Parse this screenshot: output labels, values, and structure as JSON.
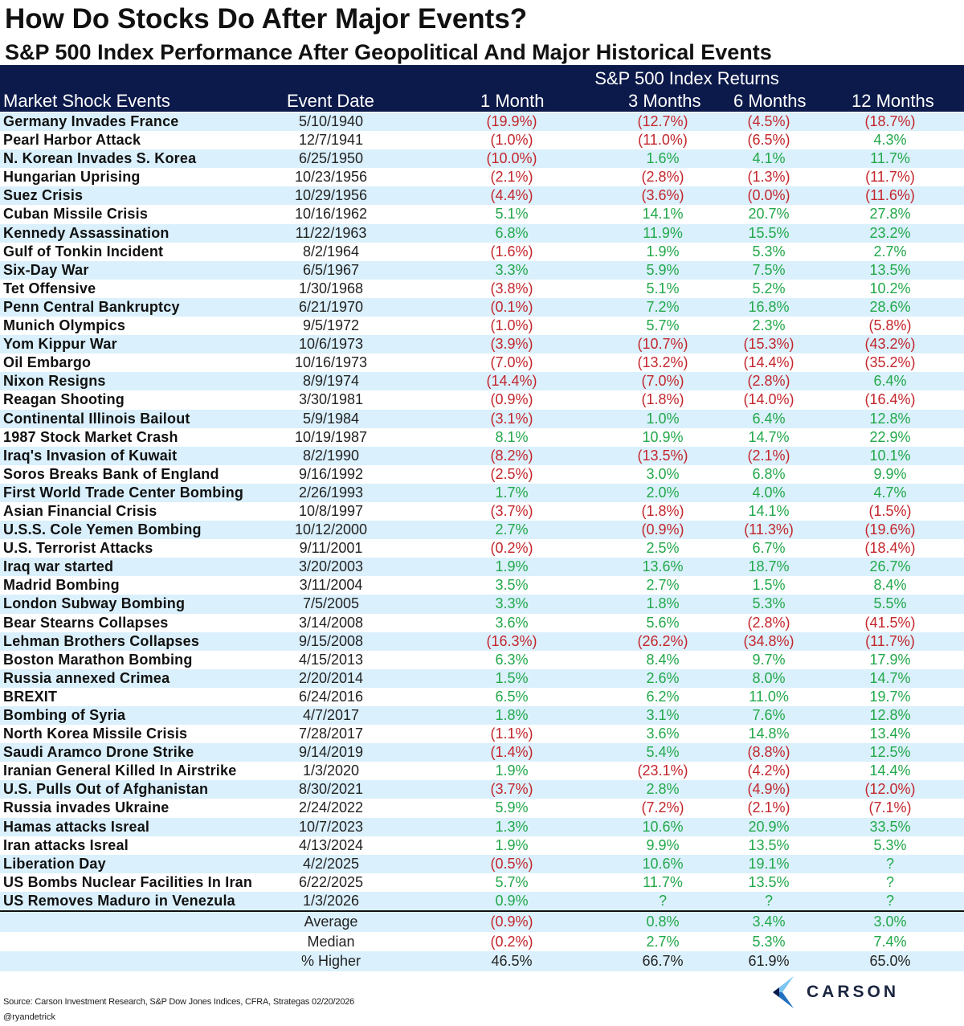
{
  "title": "How Do Stocks Do After Major Events?",
  "subtitle": "S&P 500 Index Performance After Geopolitical And Major Historical Events",
  "colors": {
    "header": "#0c1a4b",
    "alt_row": "#daf0fc",
    "negative": "#c3262c",
    "positive": "#22a84a"
  },
  "chart_data": {
    "type": "table",
    "group_header": "S&P 500 Index Returns",
    "columns": [
      "Market Shock Events",
      "Event Date",
      "1 Month",
      "3 Months",
      "6 Months",
      "12 Months"
    ],
    "rows": [
      [
        "Germany Invades France",
        "5/10/1940",
        "(19.9%)",
        "(12.7%)",
        "(4.5%)",
        "(18.7%)"
      ],
      [
        "Pearl Harbor Attack",
        "12/7/1941",
        "(1.0%)",
        "(11.0%)",
        "(6.5%)",
        "4.3%"
      ],
      [
        "N. Korean Invades S. Korea",
        "6/25/1950",
        "(10.0%)",
        "1.6%",
        "4.1%",
        "11.7%"
      ],
      [
        "Hungarian Uprising",
        "10/23/1956",
        "(2.1%)",
        "(2.8%)",
        "(1.3%)",
        "(11.7%)"
      ],
      [
        "Suez Crisis",
        "10/29/1956",
        "(4.4%)",
        "(3.6%)",
        "(0.0%)",
        "(11.6%)"
      ],
      [
        "Cuban Missile Crisis",
        "10/16/1962",
        "5.1%",
        "14.1%",
        "20.7%",
        "27.8%"
      ],
      [
        "Kennedy Assassination",
        "11/22/1963",
        "6.8%",
        "11.9%",
        "15.5%",
        "23.2%"
      ],
      [
        "Gulf of Tonkin Incident",
        "8/2/1964",
        "(1.6%)",
        "1.9%",
        "5.3%",
        "2.7%"
      ],
      [
        "Six-Day War",
        "6/5/1967",
        "3.3%",
        "5.9%",
        "7.5%",
        "13.5%"
      ],
      [
        "Tet Offensive",
        "1/30/1968",
        "(3.8%)",
        "5.1%",
        "5.2%",
        "10.2%"
      ],
      [
        "Penn Central Bankruptcy",
        "6/21/1970",
        "(0.1%)",
        "7.2%",
        "16.8%",
        "28.6%"
      ],
      [
        "Munich Olympics",
        "9/5/1972",
        "(1.0%)",
        "5.7%",
        "2.3%",
        "(5.8%)"
      ],
      [
        "Yom Kippur War",
        "10/6/1973",
        "(3.9%)",
        "(10.7%)",
        "(15.3%)",
        "(43.2%)"
      ],
      [
        "Oil Embargo",
        "10/16/1973",
        "(7.0%)",
        "(13.2%)",
        "(14.4%)",
        "(35.2%)"
      ],
      [
        "Nixon Resigns",
        "8/9/1974",
        "(14.4%)",
        "(7.0%)",
        "(2.8%)",
        "6.4%"
      ],
      [
        "Reagan Shooting",
        "3/30/1981",
        "(0.9%)",
        "(1.8%)",
        "(14.0%)",
        "(16.4%)"
      ],
      [
        "Continental Illinois Bailout",
        "5/9/1984",
        "(3.1%)",
        "1.0%",
        "6.4%",
        "12.8%"
      ],
      [
        "1987 Stock Market Crash",
        "10/19/1987",
        "8.1%",
        "10.9%",
        "14.7%",
        "22.9%"
      ],
      [
        "Iraq's Invasion of Kuwait",
        "8/2/1990",
        "(8.2%)",
        "(13.5%)",
        "(2.1%)",
        "10.1%"
      ],
      [
        "Soros Breaks Bank of England",
        "9/16/1992",
        "(2.5%)",
        "3.0%",
        "6.8%",
        "9.9%"
      ],
      [
        "First World Trade Center Bombing",
        "2/26/1993",
        "1.7%",
        "2.0%",
        "4.0%",
        "4.7%"
      ],
      [
        "Asian Financial Crisis",
        "10/8/1997",
        "(3.7%)",
        "(1.8%)",
        "14.1%",
        "(1.5%)"
      ],
      [
        "U.S.S. Cole Yemen Bombing",
        "10/12/2000",
        "2.7%",
        "(0.9%)",
        "(11.3%)",
        "(19.6%)"
      ],
      [
        "U.S. Terrorist Attacks",
        "9/11/2001",
        "(0.2%)",
        "2.5%",
        "6.7%",
        "(18.4%)"
      ],
      [
        "Iraq war started",
        "3/20/2003",
        "1.9%",
        "13.6%",
        "18.7%",
        "26.7%"
      ],
      [
        "Madrid Bombing",
        "3/11/2004",
        "3.5%",
        "2.7%",
        "1.5%",
        "8.4%"
      ],
      [
        "London Subway Bombing",
        "7/5/2005",
        "3.3%",
        "1.8%",
        "5.3%",
        "5.5%"
      ],
      [
        "Bear Stearns Collapses",
        "3/14/2008",
        "3.6%",
        "5.6%",
        "(2.8%)",
        "(41.5%)"
      ],
      [
        "Lehman Brothers Collapses",
        "9/15/2008",
        "(16.3%)",
        "(26.2%)",
        "(34.8%)",
        "(11.7%)"
      ],
      [
        "Boston Marathon Bombing",
        "4/15/2013",
        "6.3%",
        "8.4%",
        "9.7%",
        "17.9%"
      ],
      [
        "Russia annexed Crimea",
        "2/20/2014",
        "1.5%",
        "2.6%",
        "8.0%",
        "14.7%"
      ],
      [
        "BREXIT",
        "6/24/2016",
        "6.5%",
        "6.2%",
        "11.0%",
        "19.7%"
      ],
      [
        "Bombing of Syria",
        "4/7/2017",
        "1.8%",
        "3.1%",
        "7.6%",
        "12.8%"
      ],
      [
        "North Korea Missile Crisis",
        "7/28/2017",
        "(1.1%)",
        "3.6%",
        "14.8%",
        "13.4%"
      ],
      [
        "Saudi Aramco Drone Strike",
        "9/14/2019",
        "(1.4%)",
        "5.4%",
        "(8.8%)",
        "12.5%"
      ],
      [
        "Iranian General Killed In Airstrike",
        "1/3/2020",
        "1.9%",
        "(23.1%)",
        "(4.2%)",
        "14.4%"
      ],
      [
        "U.S. Pulls Out of Afghanistan",
        "8/30/2021",
        "(3.7%)",
        "2.8%",
        "(4.9%)",
        "(12.0%)"
      ],
      [
        "Russia invades Ukraine",
        "2/24/2022",
        "5.9%",
        "(7.2%)",
        "(2.1%)",
        "(7.1%)"
      ],
      [
        "Hamas attacks Isreal",
        "10/7/2023",
        "1.3%",
        "10.6%",
        "20.9%",
        "33.5%"
      ],
      [
        "Iran attacks Isreal",
        "4/13/2024",
        "1.9%",
        "9.9%",
        "13.5%",
        "5.3%"
      ],
      [
        "Liberation Day",
        "4/2/2025",
        "(0.5%)",
        "10.6%",
        "19.1%",
        "?"
      ],
      [
        "US Bombs Nuclear Facilities In Iran",
        "6/22/2025",
        "5.7%",
        "11.7%",
        "13.5%",
        "?"
      ],
      [
        "US Removes Maduro in Venezula",
        "1/3/2026",
        "0.9%",
        "?",
        "?",
        "?"
      ]
    ],
    "summary": [
      [
        "",
        "Average",
        "(0.9%)",
        "0.8%",
        "3.4%",
        "3.0%"
      ],
      [
        "",
        "Median",
        "(0.2%)",
        "2.7%",
        "5.3%",
        "7.4%"
      ],
      [
        "",
        "% Higher",
        "46.5%",
        "66.7%",
        "61.9%",
        "65.0%"
      ]
    ]
  },
  "footer": {
    "source": "Source: Carson Investment Research, S&P Dow Jones Indices, CFRA, Strategas 02/20/2026",
    "handle": "@ryandetrick",
    "logo_text": "CARSON"
  }
}
